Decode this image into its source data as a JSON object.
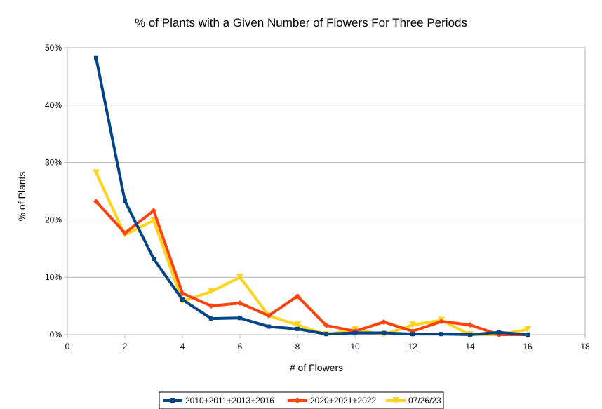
{
  "chart_data": {
    "type": "line",
    "title": "% of Plants with a Given Number of Flowers For Three Periods",
    "xlabel": "# of Flowers",
    "ylabel": "% of Plants",
    "xlim": [
      0,
      18
    ],
    "ylim": [
      0,
      50
    ],
    "x_ticks": [
      "0",
      "2",
      "4",
      "6",
      "8",
      "10",
      "12",
      "14",
      "16",
      "18"
    ],
    "y_ticks": [
      "0%",
      "10%",
      "20%",
      "30%",
      "40%",
      "50%"
    ],
    "grid": "horizontal",
    "legend_position": "bottom",
    "series": [
      {
        "name": "2010+2011+2013+2016",
        "color": "#004586",
        "marker": "square",
        "x": [
          1,
          2,
          3,
          4,
          5,
          6,
          7,
          8,
          9,
          10,
          11,
          12,
          13,
          14,
          15,
          16
        ],
        "values": [
          48.2,
          23.3,
          13.2,
          6.1,
          2.8,
          2.9,
          1.4,
          1.0,
          0.1,
          0.3,
          0.3,
          0.1,
          0.1,
          0.0,
          0.4,
          0.0
        ]
      },
      {
        "name": "2020+2021+2022",
        "color": "#ff420e",
        "marker": "diamond",
        "x": [
          1,
          2,
          3,
          4,
          5,
          6,
          7,
          8,
          9,
          10,
          11,
          12,
          13,
          14,
          15,
          16
        ],
        "values": [
          23.2,
          17.7,
          21.6,
          7.2,
          5.0,
          5.5,
          3.3,
          6.7,
          1.6,
          0.6,
          2.2,
          0.6,
          2.3,
          1.7,
          0.0,
          0.0
        ]
      },
      {
        "name": "07/26/23",
        "color": "#ffd320",
        "marker": "triangle-down",
        "x": [
          1,
          2,
          3,
          4,
          5,
          6,
          7,
          8,
          9,
          10,
          11,
          12,
          13,
          14,
          15,
          16
        ],
        "values": [
          28.2,
          17.4,
          19.9,
          5.8,
          7.5,
          10.0,
          3.3,
          1.7,
          0.0,
          0.9,
          0.0,
          1.7,
          2.5,
          0.0,
          0.0,
          0.9
        ]
      }
    ]
  }
}
